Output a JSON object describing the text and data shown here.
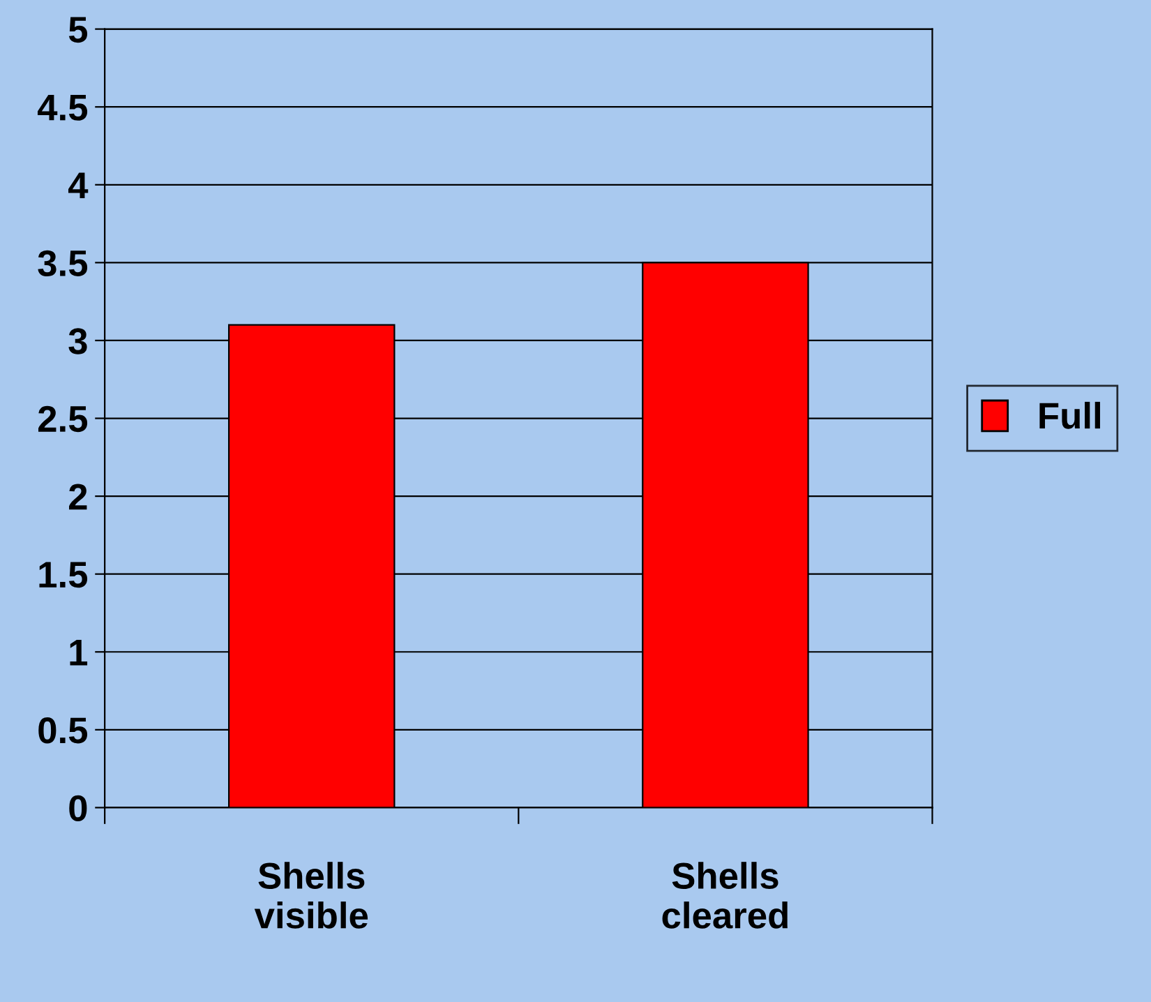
{
  "chart_data": {
    "type": "bar",
    "categories": [
      "Shells visible",
      "Shells cleared"
    ],
    "series": [
      {
        "name": "Full",
        "color": "#ff0000",
        "values": [
          3.1,
          3.5
        ]
      }
    ],
    "ylim": [
      0,
      5
    ],
    "yticks": [
      0,
      0.5,
      1,
      1.5,
      2,
      2.5,
      3,
      3.5,
      4,
      4.5,
      5
    ],
    "grid": "y",
    "legend": "right"
  }
}
